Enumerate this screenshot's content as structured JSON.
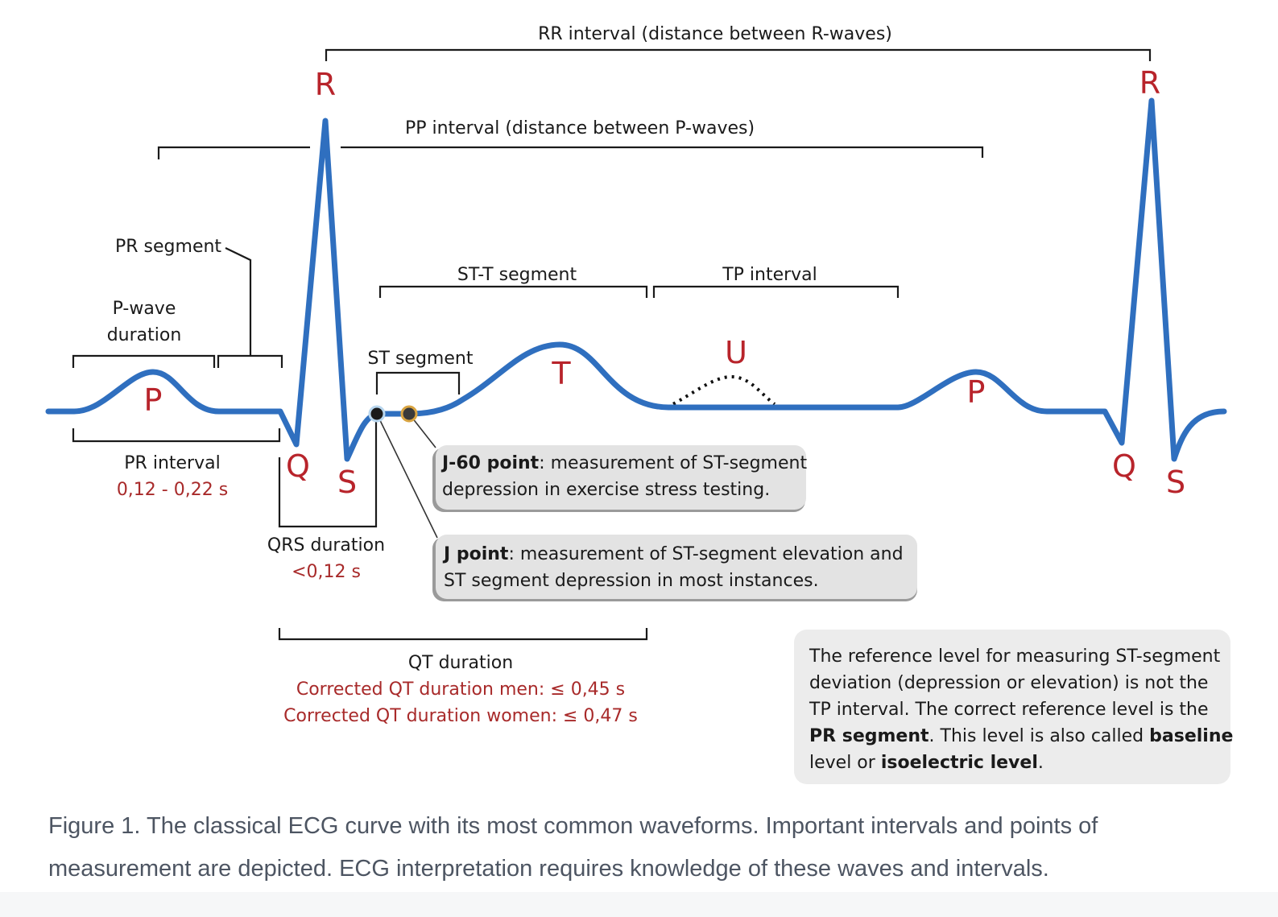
{
  "diagram": {
    "labels": {
      "rr_interval": "RR interval (distance between R-waves)",
      "pp_interval": "PP interval (distance between P-waves)",
      "pr_segment": "PR segment",
      "p_wave_duration_1": "P-wave",
      "p_wave_duration_2": "duration",
      "st_t_segment": "ST-T segment",
      "tp_interval": "TP interval",
      "st_segment": "ST segment",
      "pr_interval": "PR interval",
      "pr_interval_value": "0,12 - 0,22 s",
      "qrs_duration": "QRS duration",
      "qrs_duration_value": "<0,12 s",
      "qt_duration": "QT duration",
      "qt_men": "Corrected QT duration men: ≤ 0,45 s",
      "qt_women": "Corrected QT duration women: ≤ 0,47 s"
    },
    "waves": {
      "p1": "P",
      "q1": "Q",
      "r1": "R",
      "s1": "S",
      "t": "T",
      "u": "U",
      "p2": "P",
      "q2": "Q",
      "r2": "R",
      "s2": "S"
    },
    "callouts": {
      "j60_bold": "J-60 point",
      "j60_line1_rest": ": measurement of ST-segment",
      "j60_line2": "depression in exercise stress testing.",
      "j_bold": "J point",
      "j_line1_rest": ": measurement of ST-segment elevation and",
      "j_line2": "ST segment depression in most instances."
    },
    "reference_note": {
      "line1": "The reference level for measuring ST-segment",
      "line2": "deviation (depression or elevation) is not the",
      "line3": "TP interval. The correct reference level is the",
      "line4_bold": "PR segment",
      "line4_rest": ". This level is also called ",
      "line4_bold2": "baseline",
      "line5_rest1": "level or ",
      "line5_bold": "isoelectric level",
      "line5_rest2": "."
    },
    "colors": {
      "ecg_line": "#2f6fbf",
      "wave_letters": "#b8242b",
      "values_red": "#a82a2a",
      "callout_bg": "#e3e3e3",
      "j_point": "#1a1a1a",
      "j60_point": "#d9a441"
    }
  },
  "caption": {
    "text": "Figure 1. The classical ECG curve with its most common waveforms. Important intervals and points of measurement are depicted. ECG interpretation requires knowledge of these waves and intervals."
  }
}
